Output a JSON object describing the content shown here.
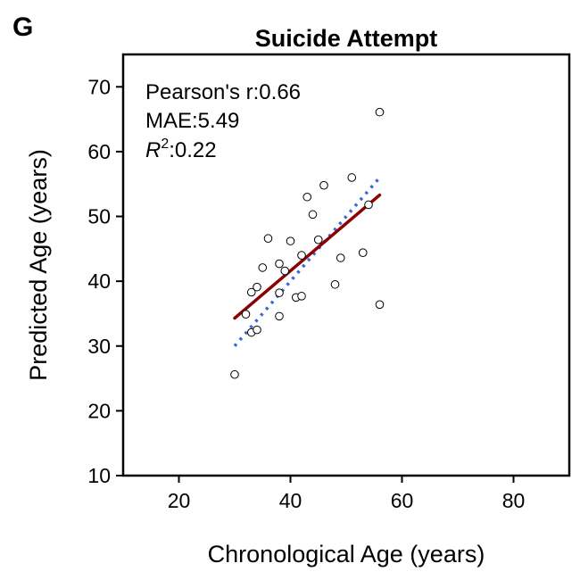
{
  "panel_label": "G",
  "chart_data": {
    "type": "scatter",
    "title": "Suicide Attempt",
    "xlabel": "Chronological Age (years)",
    "ylabel": "Predicted Age (years)",
    "xlim": [
      10,
      90
    ],
    "ylim": [
      10,
      75
    ],
    "xticks": [
      20,
      40,
      60,
      80
    ],
    "yticks": [
      10,
      20,
      30,
      40,
      50,
      60,
      70
    ],
    "grid": false,
    "annotations": {
      "pearson": "Pearson's r:0.66",
      "mae": "MAE:5.49",
      "r2_value": ":0.22"
    },
    "points": [
      {
        "x": 30,
        "y": 25.6
      },
      {
        "x": 32,
        "y": 34.9
      },
      {
        "x": 33,
        "y": 38.3
      },
      {
        "x": 33,
        "y": 32.1
      },
      {
        "x": 34,
        "y": 39.1
      },
      {
        "x": 34,
        "y": 32.5
      },
      {
        "x": 35,
        "y": 42.1
      },
      {
        "x": 36,
        "y": 46.6
      },
      {
        "x": 38,
        "y": 42.7
      },
      {
        "x": 38,
        "y": 38.2
      },
      {
        "x": 38,
        "y": 34.6
      },
      {
        "x": 39,
        "y": 41.6
      },
      {
        "x": 40,
        "y": 46.2
      },
      {
        "x": 41,
        "y": 37.5
      },
      {
        "x": 42,
        "y": 37.7
      },
      {
        "x": 42,
        "y": 44.0
      },
      {
        "x": 43,
        "y": 53.0
      },
      {
        "x": 44,
        "y": 50.3
      },
      {
        "x": 45,
        "y": 46.4
      },
      {
        "x": 46,
        "y": 54.8
      },
      {
        "x": 48,
        "y": 39.5
      },
      {
        "x": 49,
        "y": 43.6
      },
      {
        "x": 51,
        "y": 56.0
      },
      {
        "x": 53,
        "y": 44.4
      },
      {
        "x": 54,
        "y": 51.8
      },
      {
        "x": 56,
        "y": 66.1
      },
      {
        "x": 56,
        "y": 36.4
      }
    ],
    "fit_line": {
      "x": [
        30,
        56
      ],
      "y": [
        34.3,
        53.3
      ],
      "color": "#8b0000"
    },
    "identity_line": {
      "x": [
        30,
        56
      ],
      "y": [
        30,
        56
      ],
      "color": "#3d64d8"
    },
    "marker_fill": "#ffffff",
    "marker_edge": "#000000"
  }
}
